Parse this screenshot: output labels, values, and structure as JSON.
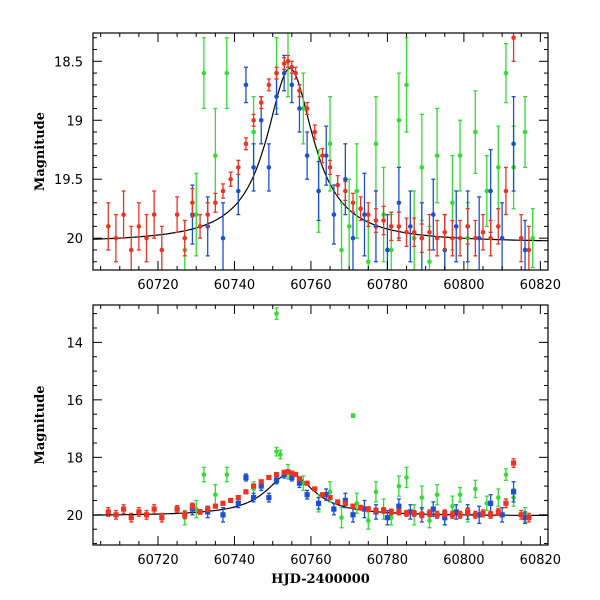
{
  "chart_data": [
    {
      "type": "scatter",
      "panel": "top",
      "title": "",
      "xlabel": "",
      "ylabel": "Magnitude",
      "xlim": [
        60703,
        60822
      ],
      "ylim": [
        20.27,
        18.26
      ],
      "y_inverted": true,
      "xticks": [
        60720,
        60740,
        60760,
        60780,
        60800,
        60820
      ],
      "yticks": [
        18.5,
        19,
        19.5,
        20
      ],
      "ytick_labels": [
        "18.5",
        "19",
        "19.5",
        "20"
      ],
      "colors": {
        "green": "#33dd33",
        "blue": "#1a4fd6",
        "red": "#ee3322",
        "model": "#000000"
      },
      "model_curve": {
        "baseline": 20.04,
        "peak_time": 60754.5,
        "amplitude": 1.48,
        "width": 7.5
      },
      "series": [
        {
          "color": "green",
          "x": [
            60727,
            60730,
            60732,
            60735,
            60738,
            60745,
            60751,
            60754,
            60758,
            60762,
            60765,
            60768,
            60770,
            60772,
            60775,
            60777,
            60779,
            60781,
            60783,
            60785,
            60787,
            60789,
            60791,
            60793,
            60795,
            60797,
            60799,
            60801,
            60803,
            60806,
            60809,
            60811,
            60813,
            60816,
            60818
          ],
          "y": [
            20.1,
            19.8,
            18.6,
            19.3,
            18.6,
            19.1,
            18.6,
            18.5,
            18.9,
            19.6,
            19.2,
            20.1,
            19.9,
            19.6,
            20.2,
            19.2,
            19.8,
            20.1,
            19.0,
            18.7,
            20.0,
            19.4,
            20.2,
            19.3,
            20.1,
            19.7,
            19.3,
            20.0,
            19.1,
            19.6,
            19.4,
            18.6,
            19.4,
            19.1,
            20.0
          ],
          "err": [
            0.25,
            0.35,
            0.3,
            0.4,
            0.3,
            0.3,
            0.3,
            0.3,
            0.3,
            0.35,
            0.4,
            0.4,
            0.4,
            0.4,
            0.35,
            0.4,
            0.4,
            0.3,
            0.4,
            0.4,
            0.4,
            0.45,
            0.3,
            0.4,
            0.3,
            0.4,
            0.3,
            0.3,
            0.35,
            0.3,
            0.35,
            0.25,
            0.35,
            0.3,
            0.25
          ]
        },
        {
          "color": "blue",
          "x": [
            60729,
            60733,
            60737,
            60741,
            60743,
            60745,
            60747,
            60749,
            60751,
            60753,
            60755,
            60757,
            60759,
            60762,
            60764,
            60766,
            60769,
            60771,
            60774,
            60777,
            60780,
            60783,
            60786,
            60789,
            60792,
            60795,
            60798,
            60801,
            60804,
            60807,
            60810,
            60813,
            60816
          ],
          "y": [
            19.8,
            19.9,
            20.0,
            19.6,
            18.7,
            19.4,
            19.0,
            19.4,
            18.8,
            18.6,
            18.7,
            18.9,
            19.3,
            19.6,
            19.3,
            19.8,
            19.5,
            20.0,
            19.8,
            19.9,
            20.1,
            19.7,
            19.9,
            20.0,
            19.8,
            20.1,
            19.9,
            19.9,
            20.0,
            19.6,
            20.0,
            19.2,
            20.1
          ],
          "err": [
            0.25,
            0.25,
            0.3,
            0.2,
            0.15,
            0.2,
            0.2,
            0.2,
            0.15,
            0.15,
            0.15,
            0.2,
            0.2,
            0.25,
            0.25,
            0.25,
            0.3,
            0.3,
            0.35,
            0.3,
            0.3,
            0.3,
            0.3,
            0.3,
            0.3,
            0.3,
            0.3,
            0.3,
            0.35,
            0.35,
            0.3,
            0.4,
            0.25
          ]
        },
        {
          "color": "red",
          "x": [
            60707,
            60709,
            60711,
            60713,
            60715,
            60717,
            60719,
            60721,
            60725,
            60727,
            60729,
            60731,
            60733,
            60735,
            60737,
            60739,
            60741,
            60743,
            60745,
            60747,
            60749,
            60751,
            60753,
            60754,
            60755,
            60756,
            60757,
            60759,
            60761,
            60763,
            60765,
            60767,
            60769,
            60771,
            60773,
            60775,
            60777,
            60779,
            60781,
            60783,
            60785,
            60787,
            60789,
            60791,
            60793,
            60795,
            60797,
            60799,
            60801,
            60803,
            60805,
            60807,
            60809,
            60811,
            60813,
            60815,
            60817
          ],
          "y": [
            19.9,
            20.0,
            19.8,
            20.1,
            19.9,
            20.0,
            19.8,
            20.1,
            19.8,
            20.0,
            19.7,
            19.9,
            19.8,
            19.7,
            19.6,
            19.5,
            19.4,
            19.2,
            19.0,
            18.85,
            18.7,
            18.6,
            18.52,
            18.5,
            18.55,
            18.6,
            18.75,
            18.9,
            19.1,
            19.3,
            19.4,
            19.55,
            19.6,
            19.7,
            19.75,
            19.8,
            19.85,
            19.85,
            19.9,
            19.9,
            19.95,
            19.95,
            20.0,
            19.95,
            20.0,
            19.95,
            20.0,
            20.0,
            19.9,
            20.0,
            19.95,
            20.0,
            19.9,
            19.6,
            18.3,
            20.0,
            20.1
          ],
          "err": [
            0.2,
            0.2,
            0.2,
            0.2,
            0.2,
            0.2,
            0.2,
            0.2,
            0.15,
            0.15,
            0.12,
            0.1,
            0.1,
            0.08,
            0.06,
            0.06,
            0.06,
            0.05,
            0.05,
            0.05,
            0.05,
            0.05,
            0.05,
            0.05,
            0.05,
            0.05,
            0.05,
            0.05,
            0.06,
            0.06,
            0.06,
            0.08,
            0.08,
            0.08,
            0.1,
            0.1,
            0.1,
            0.12,
            0.12,
            0.12,
            0.12,
            0.12,
            0.12,
            0.15,
            0.15,
            0.15,
            0.15,
            0.15,
            0.15,
            0.15,
            0.15,
            0.15,
            0.15,
            0.2,
            0.2,
            0.2,
            0.2
          ]
        }
      ]
    },
    {
      "type": "scatter",
      "panel": "bottom",
      "title": "",
      "xlabel": "HJD-2400000",
      "ylabel": "Magnitude",
      "xlim": [
        60703,
        60822
      ],
      "ylim": [
        21.05,
        12.7
      ],
      "y_inverted": true,
      "xticks": [
        60720,
        60740,
        60760,
        60780,
        60800,
        60820
      ],
      "yticks": [
        14,
        16,
        18,
        20
      ],
      "ytick_labels": [
        "14",
        "16",
        "18",
        "20"
      ],
      "colors": {
        "green": "#33dd33",
        "blue": "#1a4fd6",
        "red": "#ee3322",
        "model": "#000000"
      },
      "model_curve": {
        "baseline": 20.04,
        "peak_time": 60754.5,
        "amplitude": 1.48,
        "width": 7.5
      },
      "series": [
        {
          "color": "green",
          "x": [
            60727,
            60730,
            60732,
            60735,
            60738,
            60745,
            60751,
            60751,
            60752,
            60754,
            60758,
            60762,
            60765,
            60768,
            60771,
            60772,
            60775,
            60777,
            60779,
            60781,
            60783,
            60785,
            60787,
            60789,
            60791,
            60793,
            60795,
            60797,
            60799,
            60801,
            60803,
            60806,
            60809,
            60811,
            60813,
            60816
          ],
          "y": [
            20.1,
            19.8,
            18.6,
            19.3,
            18.6,
            19.1,
            17.8,
            13.0,
            17.9,
            18.5,
            18.9,
            19.6,
            19.2,
            20.1,
            16.55,
            19.6,
            20.2,
            19.2,
            19.8,
            20.1,
            19.0,
            18.7,
            20.0,
            19.4,
            20.2,
            19.3,
            20.1,
            19.7,
            19.3,
            20.0,
            19.1,
            19.6,
            19.4,
            18.6,
            19.4,
            20.0
          ],
          "err": [
            0.25,
            0.3,
            0.25,
            0.35,
            0.25,
            0.25,
            0.15,
            0.2,
            0.15,
            0.25,
            0.25,
            0.3,
            0.35,
            0.35,
            0.06,
            0.35,
            0.3,
            0.35,
            0.35,
            0.25,
            0.35,
            0.35,
            0.35,
            0.4,
            0.25,
            0.35,
            0.25,
            0.35,
            0.25,
            0.25,
            0.3,
            0.25,
            0.3,
            0.2,
            0.3,
            0.25
          ]
        },
        {
          "color": "blue",
          "x": [
            60729,
            60733,
            60737,
            60741,
            60743,
            60745,
            60747,
            60749,
            60751,
            60753,
            60755,
            60757,
            60759,
            60762,
            60764,
            60766,
            60769,
            60771,
            60774,
            60777,
            60780,
            60783,
            60786,
            60789,
            60792,
            60795,
            60798,
            60801,
            60804,
            60807,
            60810,
            60813,
            60816
          ],
          "y": [
            19.8,
            19.9,
            20.0,
            19.6,
            18.7,
            19.4,
            19.0,
            19.4,
            18.8,
            18.6,
            18.7,
            18.9,
            19.3,
            19.6,
            19.3,
            19.8,
            19.5,
            20.0,
            19.8,
            19.9,
            20.1,
            19.7,
            19.9,
            20.0,
            19.8,
            20.1,
            19.9,
            19.9,
            20.0,
            19.6,
            20.0,
            19.2,
            20.1
          ],
          "err": [
            0.2,
            0.2,
            0.25,
            0.15,
            0.12,
            0.15,
            0.15,
            0.15,
            0.12,
            0.12,
            0.12,
            0.15,
            0.15,
            0.2,
            0.2,
            0.2,
            0.25,
            0.25,
            0.3,
            0.25,
            0.25,
            0.25,
            0.25,
            0.25,
            0.25,
            0.25,
            0.25,
            0.25,
            0.3,
            0.3,
            0.25,
            0.35,
            0.2
          ]
        },
        {
          "color": "red",
          "x": [
            60707,
            60709,
            60711,
            60713,
            60715,
            60717,
            60719,
            60721,
            60725,
            60727,
            60729,
            60731,
            60733,
            60735,
            60737,
            60739,
            60741,
            60743,
            60745,
            60747,
            60749,
            60751,
            60753,
            60754,
            60755,
            60756,
            60757,
            60759,
            60761,
            60763,
            60765,
            60767,
            60769,
            60771,
            60773,
            60775,
            60777,
            60779,
            60781,
            60783,
            60785,
            60787,
            60789,
            60791,
            60793,
            60795,
            60797,
            60799,
            60801,
            60803,
            60805,
            60807,
            60809,
            60811,
            60813,
            60815,
            60817
          ],
          "y": [
            19.9,
            20.0,
            19.8,
            20.1,
            19.9,
            20.0,
            19.8,
            20.1,
            19.8,
            20.0,
            19.7,
            19.9,
            19.8,
            19.7,
            19.6,
            19.5,
            19.4,
            19.2,
            19.0,
            18.85,
            18.7,
            18.6,
            18.52,
            18.5,
            18.55,
            18.6,
            18.75,
            18.9,
            19.1,
            19.3,
            19.4,
            19.55,
            19.6,
            19.7,
            19.75,
            19.8,
            19.85,
            19.85,
            19.9,
            19.9,
            19.95,
            19.95,
            20.0,
            19.95,
            20.0,
            19.95,
            20.0,
            20.0,
            19.9,
            20.0,
            19.95,
            20.0,
            19.9,
            19.6,
            18.2,
            20.0,
            20.1
          ],
          "err": [
            0.15,
            0.15,
            0.15,
            0.15,
            0.15,
            0.15,
            0.15,
            0.15,
            0.12,
            0.12,
            0.1,
            0.08,
            0.08,
            0.06,
            0.05,
            0.05,
            0.05,
            0.05,
            0.05,
            0.05,
            0.05,
            0.05,
            0.05,
            0.05,
            0.05,
            0.05,
            0.05,
            0.05,
            0.05,
            0.05,
            0.05,
            0.06,
            0.06,
            0.06,
            0.08,
            0.08,
            0.08,
            0.1,
            0.1,
            0.1,
            0.1,
            0.1,
            0.1,
            0.12,
            0.12,
            0.12,
            0.12,
            0.12,
            0.12,
            0.12,
            0.12,
            0.12,
            0.12,
            0.15,
            0.15,
            0.15,
            0.15
          ]
        }
      ]
    }
  ]
}
